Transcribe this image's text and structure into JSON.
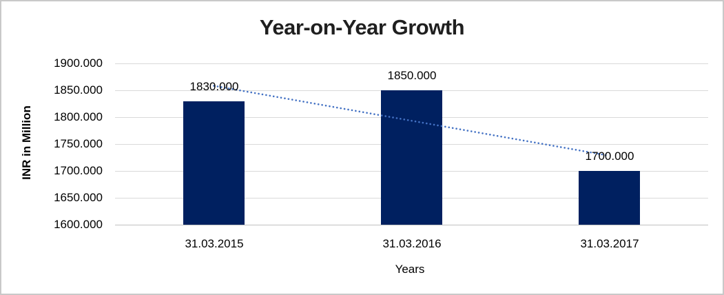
{
  "chart_data": {
    "type": "bar",
    "title": "Year-on-Year Growth",
    "xlabel": "Years",
    "ylabel": "INR in Million",
    "categories": [
      "31.03.2015",
      "31.03.2016",
      "31.03.2017"
    ],
    "values": [
      1830,
      1850,
      1700
    ],
    "value_labels": [
      "1830.000",
      "1850.000",
      "1700.000"
    ],
    "ylim": [
      1600,
      1900
    ],
    "ytick_labels": [
      "1900.000",
      "1850.000",
      "1800.000",
      "1750.000",
      "1700.000",
      "1650.000",
      "1600.000"
    ],
    "grid": "horizontal",
    "legend": "none",
    "colors": {
      "bar": "#002060",
      "trendline": "#4472C4",
      "gridline": "#d9d9d9",
      "title_text": "#1f1f1f",
      "page_border": "#c9c9c9"
    },
    "trendline": {
      "type": "linear",
      "style": "dotted",
      "fit_values": [
        1858.33,
        1793.33,
        1728.33
      ]
    }
  }
}
